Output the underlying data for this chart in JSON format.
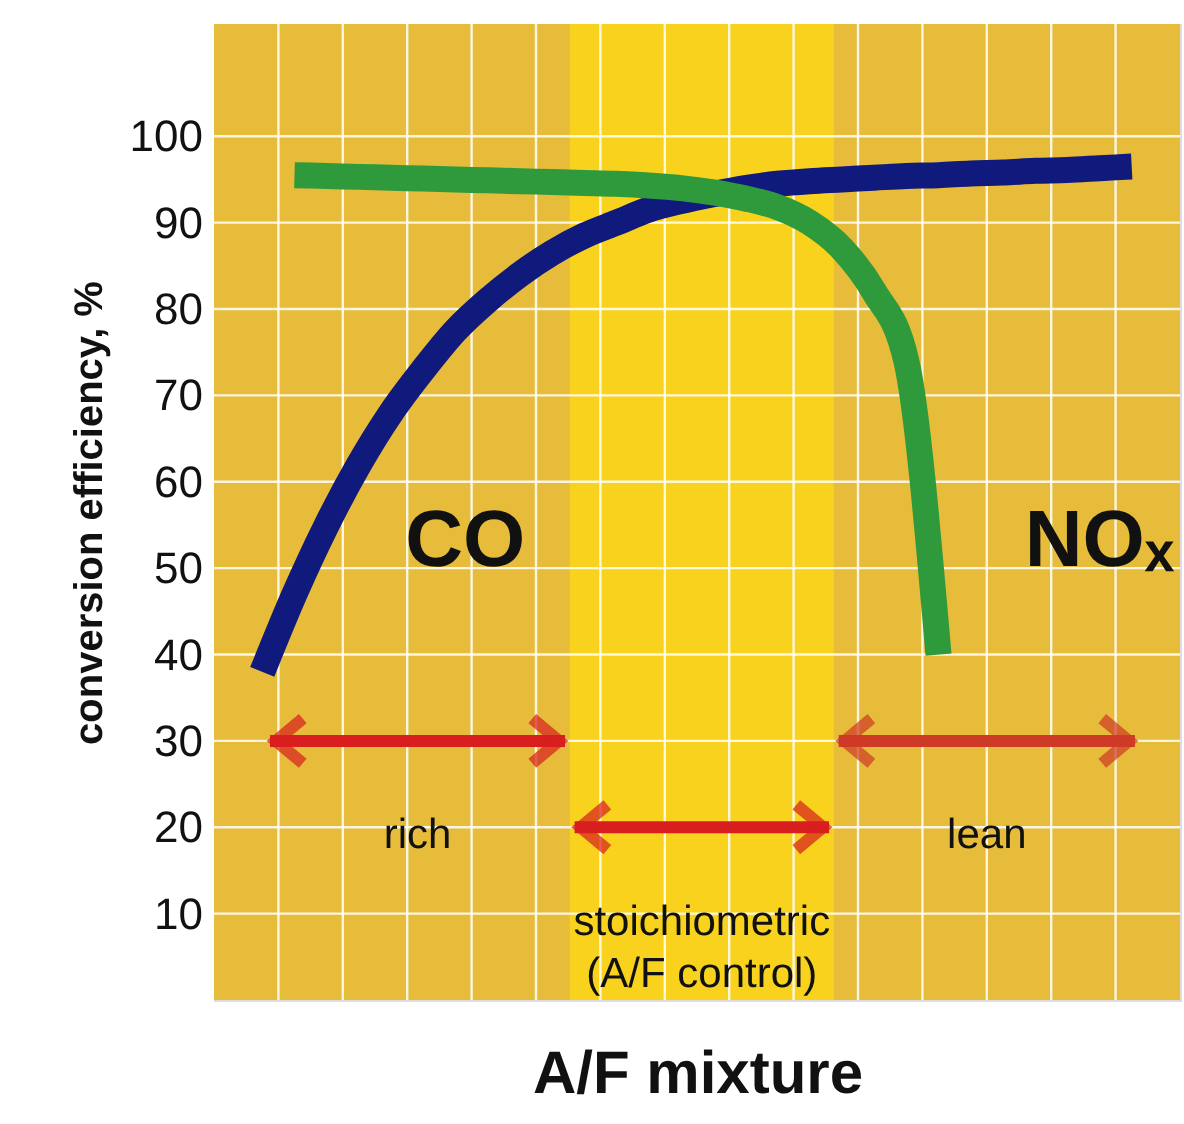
{
  "chart_data": {
    "type": "line",
    "xlabel": "A/F mixture",
    "ylabel": "conversion efficiency, %",
    "categories": [
      null,
      null,
      null,
      null,
      null,
      null,
      null,
      null,
      null,
      null,
      null,
      null,
      null,
      null,
      null,
      null,
      null,
      null,
      null,
      null,
      null,
      null,
      null,
      null,
      null,
      null,
      null,
      null,
      null,
      null
    ],
    "series": [
      {
        "name": "CO",
        "color": "#0f1a7c",
        "values": [
          null,
          38,
          47,
          55,
          62,
          68,
          73,
          77.5,
          81,
          84,
          86.5,
          88.5,
          90,
          91.5,
          92.5,
          93.3,
          94,
          94.5,
          94.8,
          95,
          95.2,
          95.4,
          95.5,
          95.7,
          95.8,
          96,
          96.1,
          96.3,
          96.5,
          null
        ]
      },
      {
        "name": "NOₓ",
        "color": "#2e9a3c",
        "values": [
          null,
          null,
          95.5,
          95.4,
          95.3,
          95.2,
          95.1,
          95,
          94.9,
          94.8,
          94.7,
          94.6,
          94.5,
          94.3,
          94,
          93.5,
          92.8,
          91.8,
          90,
          87,
          82,
          74,
          40,
          null,
          null,
          null,
          null,
          null,
          null,
          null
        ]
      }
    ],
    "ylim": [
      0,
      113
    ],
    "yticks": [
      10,
      20,
      30,
      40,
      50,
      60,
      70,
      80,
      90,
      100
    ],
    "grid": true,
    "tick_labels": "y",
    "marker": "none",
    "line_style": "solid",
    "annotations": [
      "rich",
      "stoichiometric\n(A/F control)",
      "lean"
    ]
  }
}
